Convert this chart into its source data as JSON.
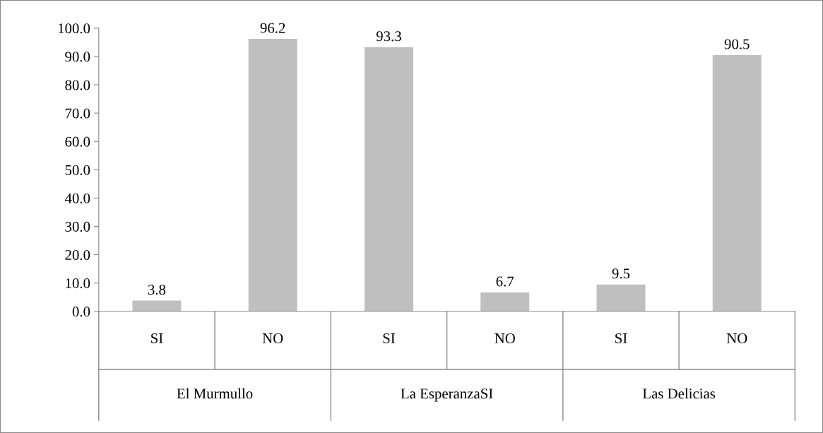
{
  "chart_data": {
    "type": "bar",
    "categories": [
      "SI",
      "NO",
      "SI",
      "NO",
      "SI",
      "NO"
    ],
    "values": [
      3.8,
      96.2,
      93.3,
      6.7,
      9.5,
      90.5
    ],
    "color": "#bfbfbf",
    "annotations": [
      "El Murmullo",
      "La EsperanzaSI",
      "Las Delicias"
    ],
    "ylim": [
      0,
      100
    ],
    "yticks": [
      {
        "value": 0,
        "label": "0.0"
      },
      {
        "value": 10,
        "label": "10.0"
      },
      {
        "value": 20,
        "label": "20.0"
      },
      {
        "value": 30,
        "label": "30.0"
      },
      {
        "value": 40,
        "label": "40.0"
      },
      {
        "value": 50,
        "label": "50.0"
      },
      {
        "value": 60,
        "label": "60.0"
      },
      {
        "value": 70,
        "label": "70.0"
      },
      {
        "value": 80,
        "label": "80.0"
      },
      {
        "value": 90,
        "label": "90.0"
      },
      {
        "value": 100,
        "label": "100.0"
      }
    ],
    "data_labels": true
  }
}
